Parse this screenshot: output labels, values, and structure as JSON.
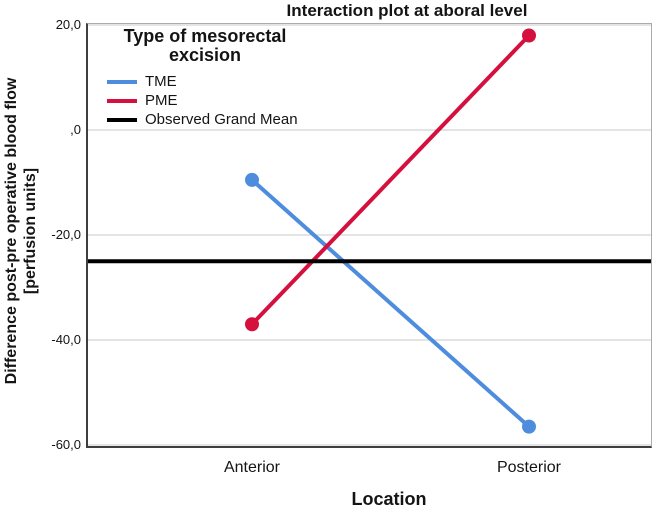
{
  "chart": {
    "title": "Interaction plot at aboral level",
    "legend": {
      "title_line1": "Type of mesorectal",
      "title_line2": "excision"
    },
    "y_axis": {
      "label_line1": "Difference post-pre operative blood flow",
      "label_line2": "[perfusion units]"
    }
  },
  "chart_data": {
    "type": "line",
    "title": "Interaction plot at aboral level",
    "xlabel": "Location",
    "ylabel": "Difference post-pre operative blood flow [perfusion units]",
    "categories": [
      "Anterior",
      "Posterior"
    ],
    "series": [
      {
        "name": "TME",
        "color": "#4E8DDD",
        "values": [
          -9.5,
          -56.5
        ],
        "marker": "circle"
      },
      {
        "name": "PME",
        "color": "#D5103F",
        "values": [
          -37.0,
          18.0
        ],
        "marker": "circle"
      },
      {
        "name": "Observed Grand Mean",
        "color": "#000000",
        "values": [
          -25.0,
          -25.0
        ],
        "reference_line": true
      }
    ],
    "ylim": [
      -60,
      20
    ],
    "yticks": [
      20,
      0,
      -20,
      -40,
      -60
    ],
    "ytick_labels": [
      "20,0",
      ",0",
      "-20,0",
      "-40,0",
      "-60,0"
    ],
    "grid": true,
    "gridline_color": "#c9c9c9",
    "legend_title": "Type of mesorectal excision",
    "legend_position": "top-left-inside"
  }
}
